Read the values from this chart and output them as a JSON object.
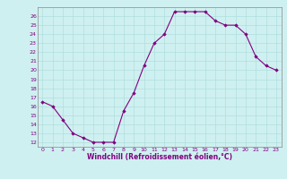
{
  "x": [
    0,
    1,
    2,
    3,
    4,
    5,
    6,
    7,
    8,
    9,
    10,
    11,
    12,
    13,
    14,
    15,
    16,
    17,
    18,
    19,
    20,
    21,
    22,
    23
  ],
  "y": [
    16.5,
    16.0,
    14.5,
    13.0,
    12.5,
    12.0,
    12.0,
    12.0,
    15.5,
    17.5,
    20.5,
    23.0,
    24.0,
    26.5,
    26.5,
    26.5,
    26.5,
    25.5,
    25.0,
    25.0,
    24.0,
    21.5,
    20.5,
    20.0
  ],
  "line_color": "#800080",
  "marker": "D",
  "marker_size": 1.8,
  "bg_color": "#cff0f0",
  "grid_color": "#b0dede",
  "tick_color": "#800080",
  "label_color": "#800080",
  "xlabel": "Windchill (Refroidissement éolien,°C)",
  "ylabel_ticks": [
    12,
    13,
    14,
    15,
    16,
    17,
    18,
    19,
    20,
    21,
    22,
    23,
    24,
    25,
    26
  ],
  "ylim": [
    11.5,
    27.0
  ],
  "xlim": [
    -0.5,
    23.5
  ]
}
